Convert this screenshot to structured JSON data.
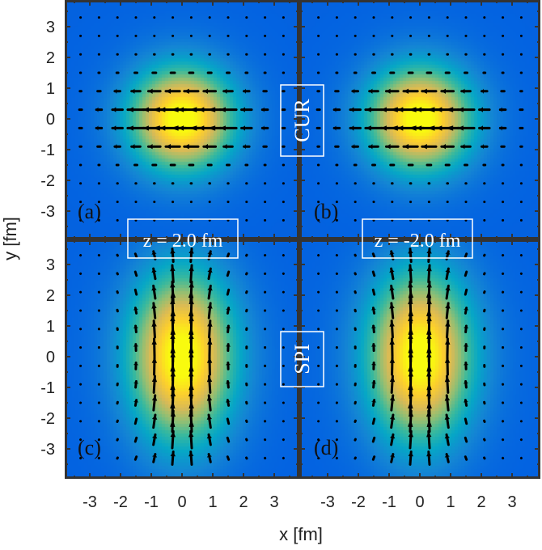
{
  "chart_data": {
    "type": "heatmap",
    "xlabel": "x [fm]",
    "ylabel": "y [fm]",
    "xlim": [
      -3.8,
      3.8
    ],
    "ylim": [
      -3.8,
      3.8
    ],
    "xticks": [
      "-3",
      "-2",
      "-1",
      "0",
      "1",
      "2",
      "3"
    ],
    "yticks": [
      "3",
      "2",
      "1",
      "0",
      "-1",
      "-2",
      "-3"
    ],
    "colormap": "parula",
    "quiver": true,
    "row_labels": [
      "CUR",
      "SPI"
    ],
    "column_labels": [
      "z = 2.0 fm",
      "z = -2.0 fm"
    ],
    "panels": [
      {
        "label": "(a)",
        "row": "CUR",
        "column": "z = 2.0 fm",
        "density_shape": "circular",
        "field_direction": "-x"
      },
      {
        "label": "(b)",
        "row": "CUR",
        "column": "z = -2.0 fm",
        "density_shape": "circular",
        "field_direction": "-x"
      },
      {
        "label": "(c)",
        "row": "SPI",
        "column": "z = 2.0 fm",
        "density_shape": "elongated along y",
        "field_direction": "+y"
      },
      {
        "label": "(d)",
        "row": "SPI",
        "column": "z = -2.0 fm",
        "density_shape": "elongated along y",
        "field_direction": "+y"
      }
    ]
  }
}
